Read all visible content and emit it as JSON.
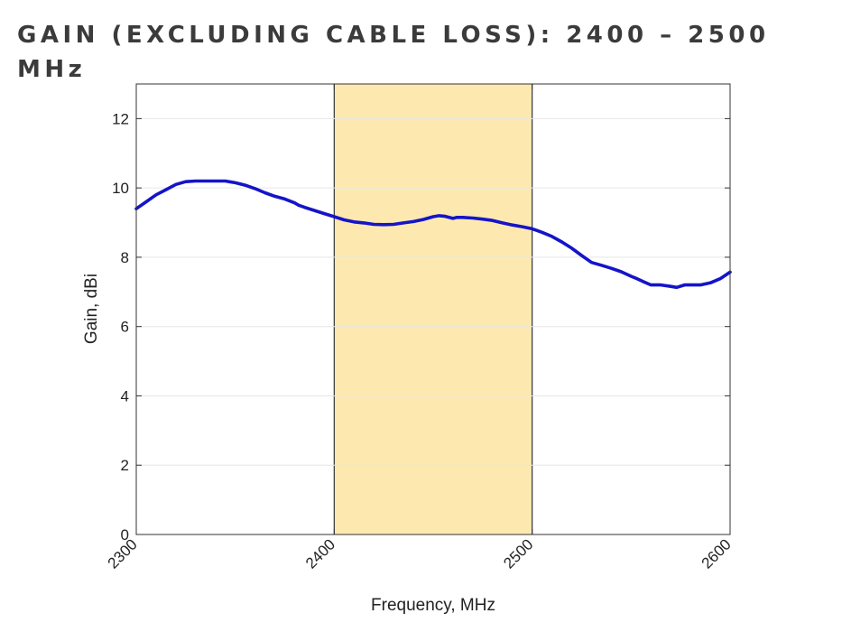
{
  "title": "GAIN (EXCLUDING CABLE LOSS): 2400 – 2500 MHz",
  "colors": {
    "line": "#1414c8",
    "band_fill": "#fde9b0",
    "band_edge": "#333333",
    "grid": "#e6e6e6",
    "axis": "#333333"
  },
  "chart_data": {
    "type": "line",
    "title": "GAIN (EXCLUDING CABLE LOSS): 2400 – 2500 MHz",
    "xlabel": "Frequency, MHz",
    "ylabel": "Gain, dBi",
    "xlim": [
      2300,
      2600
    ],
    "ylim": [
      0,
      13
    ],
    "xticks": [
      2300,
      2400,
      2500,
      2600
    ],
    "yticks": [
      0,
      2,
      4,
      6,
      8,
      10,
      12
    ],
    "grid": "horizontal",
    "highlight_band": [
      2400,
      2500
    ],
    "series": [
      {
        "x": [
          2300,
          2305,
          2310,
          2315,
          2320,
          2325,
          2330,
          2335,
          2340,
          2345,
          2350,
          2355,
          2360,
          2365,
          2370,
          2375,
          2380,
          2382,
          2385,
          2390,
          2395,
          2400,
          2405,
          2410,
          2415,
          2420,
          2425,
          2430,
          2435,
          2440,
          2445,
          2450,
          2453,
          2456,
          2460,
          2462,
          2465,
          2470,
          2475,
          2480,
          2485,
          2490,
          2495,
          2500,
          2505,
          2510,
          2515,
          2520,
          2525,
          2530,
          2535,
          2540,
          2545,
          2550,
          2553,
          2556,
          2560,
          2565,
          2570,
          2573,
          2577,
          2585,
          2590,
          2595,
          2600
        ],
        "y": [
          9.4,
          9.6,
          9.8,
          9.95,
          10.1,
          10.18,
          10.2,
          10.2,
          10.2,
          10.2,
          10.15,
          10.08,
          9.98,
          9.86,
          9.76,
          9.68,
          9.57,
          9.5,
          9.44,
          9.35,
          9.26,
          9.17,
          9.08,
          9.02,
          8.99,
          8.95,
          8.94,
          8.95,
          8.99,
          9.03,
          9.09,
          9.17,
          9.2,
          9.18,
          9.12,
          9.15,
          9.15,
          9.13,
          9.1,
          9.06,
          8.99,
          8.93,
          8.88,
          8.82,
          8.72,
          8.6,
          8.44,
          8.26,
          8.05,
          7.85,
          7.77,
          7.68,
          7.58,
          7.45,
          7.38,
          7.3,
          7.2,
          7.2,
          7.16,
          7.13,
          7.2,
          7.2,
          7.26,
          7.38,
          7.57
        ]
      }
    ]
  }
}
